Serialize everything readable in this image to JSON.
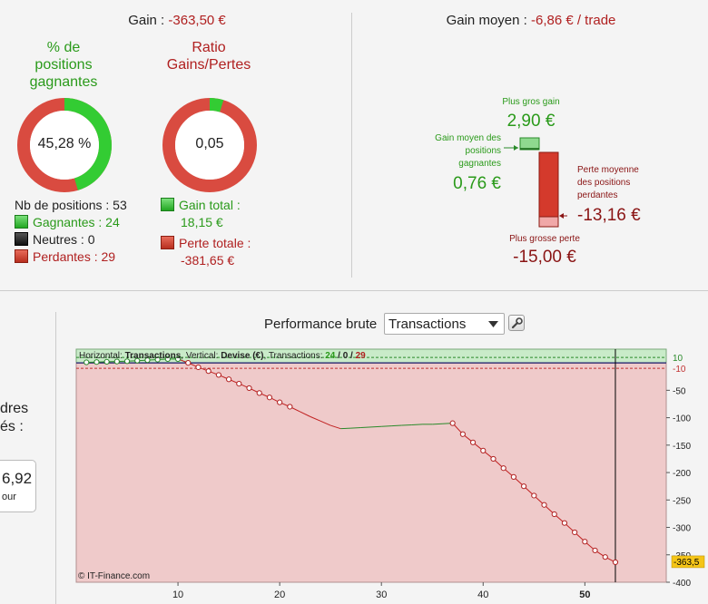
{
  "summary": {
    "gain_label": "Gain : ",
    "gain_value": "-363,50 €",
    "avg_label": "Gain moyen : ",
    "avg_value": "-6,86 € / trade"
  },
  "donut_positions": {
    "title": "% de\npositions\ngagnantes",
    "center_text": "45,28 %",
    "fraction": 0.4528
  },
  "donut_ratio": {
    "title": "Ratio\nGains/Pertes",
    "center_text": "0,05",
    "fraction": 0.0475
  },
  "positions_legend": {
    "count_label": "Nb de positions : 53",
    "winners": "Gagnantes : 24",
    "neutral": "Neutres : 0",
    "losers": "Perdantes : 29"
  },
  "totals_legend": {
    "gain_label": "Gain total :",
    "gain_value": "18,15 €",
    "loss_label": "Perte totale :",
    "loss_value": "-381,65 €"
  },
  "stats_box": {
    "best_label": "Plus gros gain",
    "best_value": "2,90 €",
    "avg_win_label": "Gain moyen des\npositions\ngagnantes",
    "avg_win_value": "0,76 €",
    "avg_loss_label": "Perte moyenne\ndes positions\nperdantes",
    "avg_loss_value": "-13,16 €",
    "worst_label": "Plus grosse perte",
    "worst_value": "-15,00 €"
  },
  "left_panel": {
    "text1": "dres",
    "text2": "és :",
    "value": "6,92",
    "sub": "our"
  },
  "performance": {
    "label": "Performance brute",
    "select_value": "Transactions",
    "info_prefix": "Horizontal: ",
    "info_h": "Transactions",
    "info_mid": ", Vertical: ",
    "info_v": "Devise (€)",
    "info_tx": ", Transactions: ",
    "info_win": "24",
    "info_sep1": " / ",
    "info_neu": "0",
    "info_sep2": " / ",
    "info_loss": "29",
    "copyright": "© IT-Finance.com"
  },
  "chart_data": {
    "type": "line",
    "title": "Performance brute",
    "xlabel": "Transactions",
    "ylabel": "Devise (€)",
    "xlim": [
      0,
      58
    ],
    "ylim": [
      -400,
      25
    ],
    "x_ticks": [
      "10",
      "20",
      "30",
      "40",
      "50"
    ],
    "y_ticks": [
      "-50",
      "-100",
      "-150",
      "-200",
      "-250",
      "-300",
      "-350",
      "-400"
    ],
    "ref_lines": [
      {
        "label": "10",
        "value": 10
      },
      {
        "label": "-10",
        "value": -10
      }
    ],
    "cursor_x": 53,
    "last_value_label": "-363,5",
    "last_value": -363.5,
    "points_x": [
      1,
      2,
      3,
      4,
      5,
      6,
      7,
      8,
      9,
      10,
      11,
      12,
      13,
      14,
      15,
      16,
      17,
      18,
      19,
      20,
      21,
      22,
      23,
      24,
      25,
      26,
      27,
      28,
      29,
      30,
      31,
      32,
      33,
      34,
      35,
      36,
      37,
      38,
      39,
      40,
      41,
      42,
      43,
      44,
      45,
      46,
      47,
      48,
      49,
      50,
      51,
      52,
      53
    ],
    "points_y": [
      1.0,
      1.5,
      2.0,
      2.5,
      3.0,
      4.0,
      5.0,
      6.0,
      7.0,
      7.0,
      0,
      -8,
      -15,
      -22,
      -30,
      -38,
      -46,
      -55,
      -63,
      -72,
      -80,
      -89,
      -98,
      -106,
      -114,
      -120,
      -119,
      -118,
      -117,
      -116,
      -115,
      -114,
      -113,
      -112,
      -112,
      -111,
      -110,
      -130,
      -145,
      -160,
      -175,
      -192,
      -208,
      -225,
      -242,
      -259,
      -276,
      -292,
      -309,
      -326,
      -342,
      -354,
      -363.5
    ],
    "markers": [
      1,
      1,
      1,
      1,
      1,
      1,
      1,
      1,
      1,
      1,
      1,
      1,
      1,
      1,
      1,
      1,
      1,
      1,
      1,
      1,
      1,
      0,
      0,
      0,
      0,
      0,
      0,
      0,
      0,
      0,
      0,
      0,
      0,
      0,
      0,
      0,
      1,
      1,
      1,
      1,
      1,
      1,
      1,
      1,
      1,
      1,
      1,
      1,
      1,
      1,
      1,
      1,
      1
    ]
  },
  "colors": {
    "green": "#2a9a1a",
    "red": "#b02020",
    "chart_green_bg": "#c9ebc9",
    "chart_red_bg": "#efcaca"
  }
}
